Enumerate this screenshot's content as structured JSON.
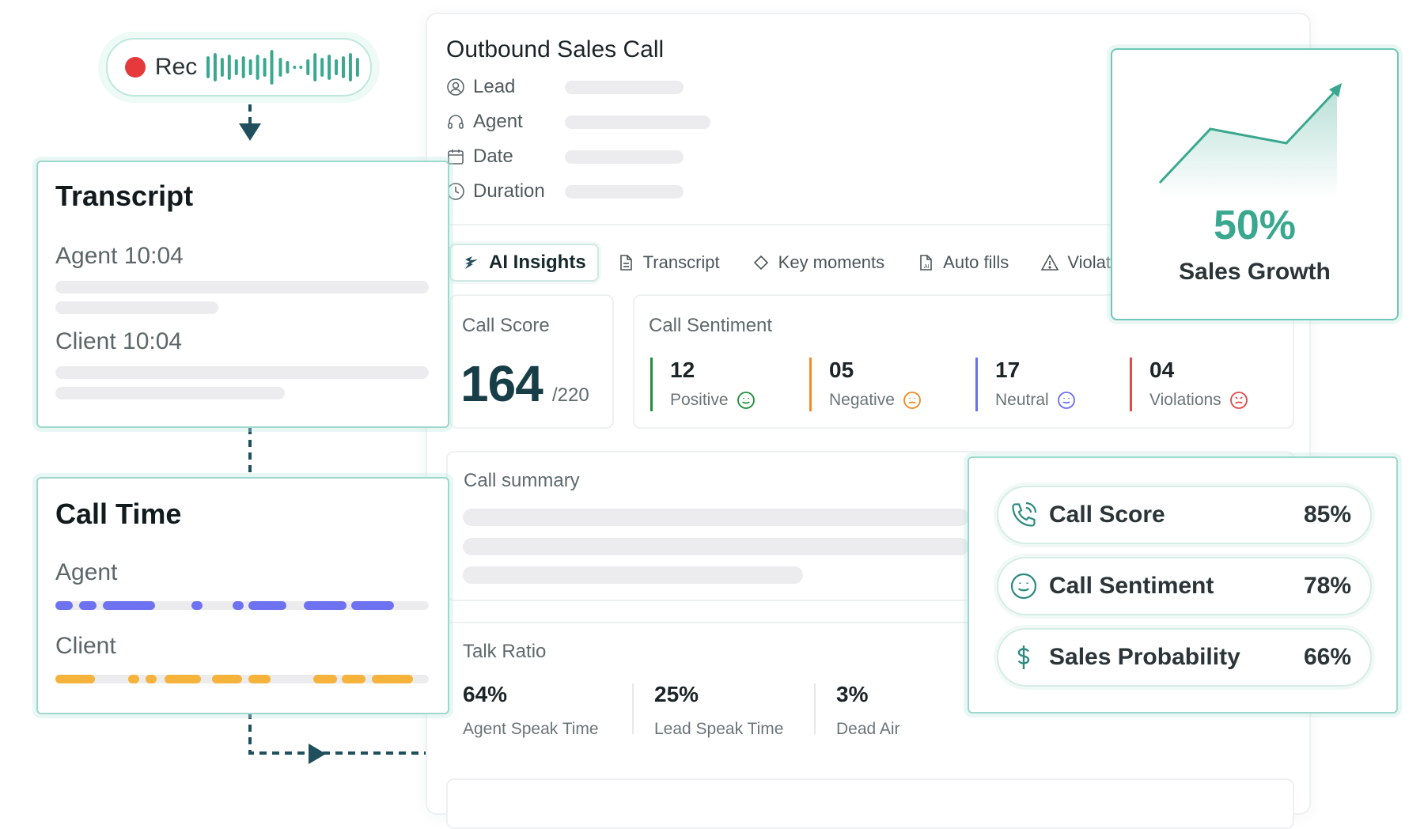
{
  "colors": {
    "accent": "#1f4f5c",
    "teal": "#3aa88f",
    "rec_red": "#e5393c",
    "agent_bar": "#6f72f0",
    "client_bar": "#f6b33b",
    "positive": "#1f8f3a",
    "negative": "#f08a24",
    "neutral": "#6a6ff0",
    "violations": "#e54848"
  },
  "recorder": {
    "label": "Rec"
  },
  "transcript_card": {
    "title": "Transcript",
    "agent_line": "Agent  10:04",
    "client_line": "Client  10:04"
  },
  "call_time_card": {
    "title": "Call Time",
    "agent_label": "Agent",
    "client_label": "Client"
  },
  "call_panel": {
    "title": "Outbound Sales Call",
    "meta": [
      {
        "label": "Lead",
        "icon": "user-circle-icon"
      },
      {
        "label": "Agent",
        "icon": "headset-icon"
      },
      {
        "label": "Date",
        "icon": "calendar-icon"
      },
      {
        "label": "Duration",
        "icon": "clock-icon"
      }
    ],
    "tabs": [
      {
        "label": "AI Insights",
        "icon": "sparkle-icon",
        "active": true
      },
      {
        "label": "Transcript",
        "icon": "document-icon"
      },
      {
        "label": "Key moments",
        "icon": "diamond-icon"
      },
      {
        "label": "Auto fills",
        "icon": "ai-document-icon"
      },
      {
        "label": "Violations",
        "icon": "warning-icon"
      }
    ],
    "call_score": {
      "label": "Call Score",
      "value": "164",
      "total": "/220"
    },
    "call_sentiment": {
      "label": "Call Sentiment",
      "items": [
        {
          "count": "12",
          "label": "Positive"
        },
        {
          "count": "05",
          "label": "Negative"
        },
        {
          "count": "17",
          "label": "Neutral"
        },
        {
          "count": "04",
          "label": "Violations"
        }
      ]
    },
    "call_summary": {
      "label": "Call summary"
    },
    "talk_ratio": {
      "label": "Talk Ratio",
      "items": [
        {
          "value": "64%",
          "label": "Agent Speak Time"
        },
        {
          "value": "25%",
          "label": "Lead Speak Time"
        },
        {
          "value": "3%",
          "label": "Dead Air"
        }
      ]
    }
  },
  "sales_growth": {
    "value": "50%",
    "label": "Sales Growth"
  },
  "metrics": [
    {
      "label": "Call Score",
      "value": "85%",
      "icon": "phone-icon"
    },
    {
      "label": "Call Sentiment",
      "value": "78%",
      "icon": "smile-icon"
    },
    {
      "label": "Sales Probability",
      "value": "66%",
      "icon": "dollar-icon"
    }
  ]
}
